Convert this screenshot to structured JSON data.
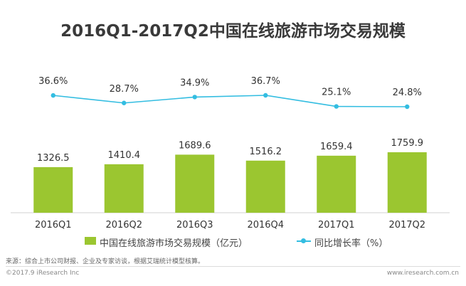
{
  "chart_data": {
    "type": "bar",
    "title": "2016Q1-2017Q2中国在线旅游市场交易规模",
    "categories": [
      "2016Q1",
      "2016Q2",
      "2016Q3",
      "2016Q4",
      "2017Q1",
      "2017Q2"
    ],
    "series": [
      {
        "name": "中国在线旅游市场交易规模（亿元）",
        "type": "bar",
        "values": [
          1326.5,
          1410.4,
          1689.6,
          1516.2,
          1659.4,
          1759.9
        ],
        "labels": [
          "1326.5",
          "1410.4",
          "1689.6",
          "1516.2",
          "1659.4",
          "1759.9"
        ],
        "color": "#9bc630"
      },
      {
        "name": "同比增长率（%）",
        "type": "line",
        "values": [
          36.6,
          28.7,
          34.9,
          36.7,
          25.1,
          24.8
        ],
        "labels": [
          "36.6%",
          "28.7%",
          "34.9%",
          "36.7%",
          "25.1%",
          "24.8%"
        ],
        "color": "#33bde1"
      }
    ],
    "legend_position": "bottom",
    "grid": false
  },
  "source_note": "来源：综合上市公司财报、企业及专家访谈，根据艾瑞统计模型核算。",
  "footer": {
    "copyright": "©2017.9 iResearch Inc",
    "url": "www.iresearch.com.cn"
  }
}
